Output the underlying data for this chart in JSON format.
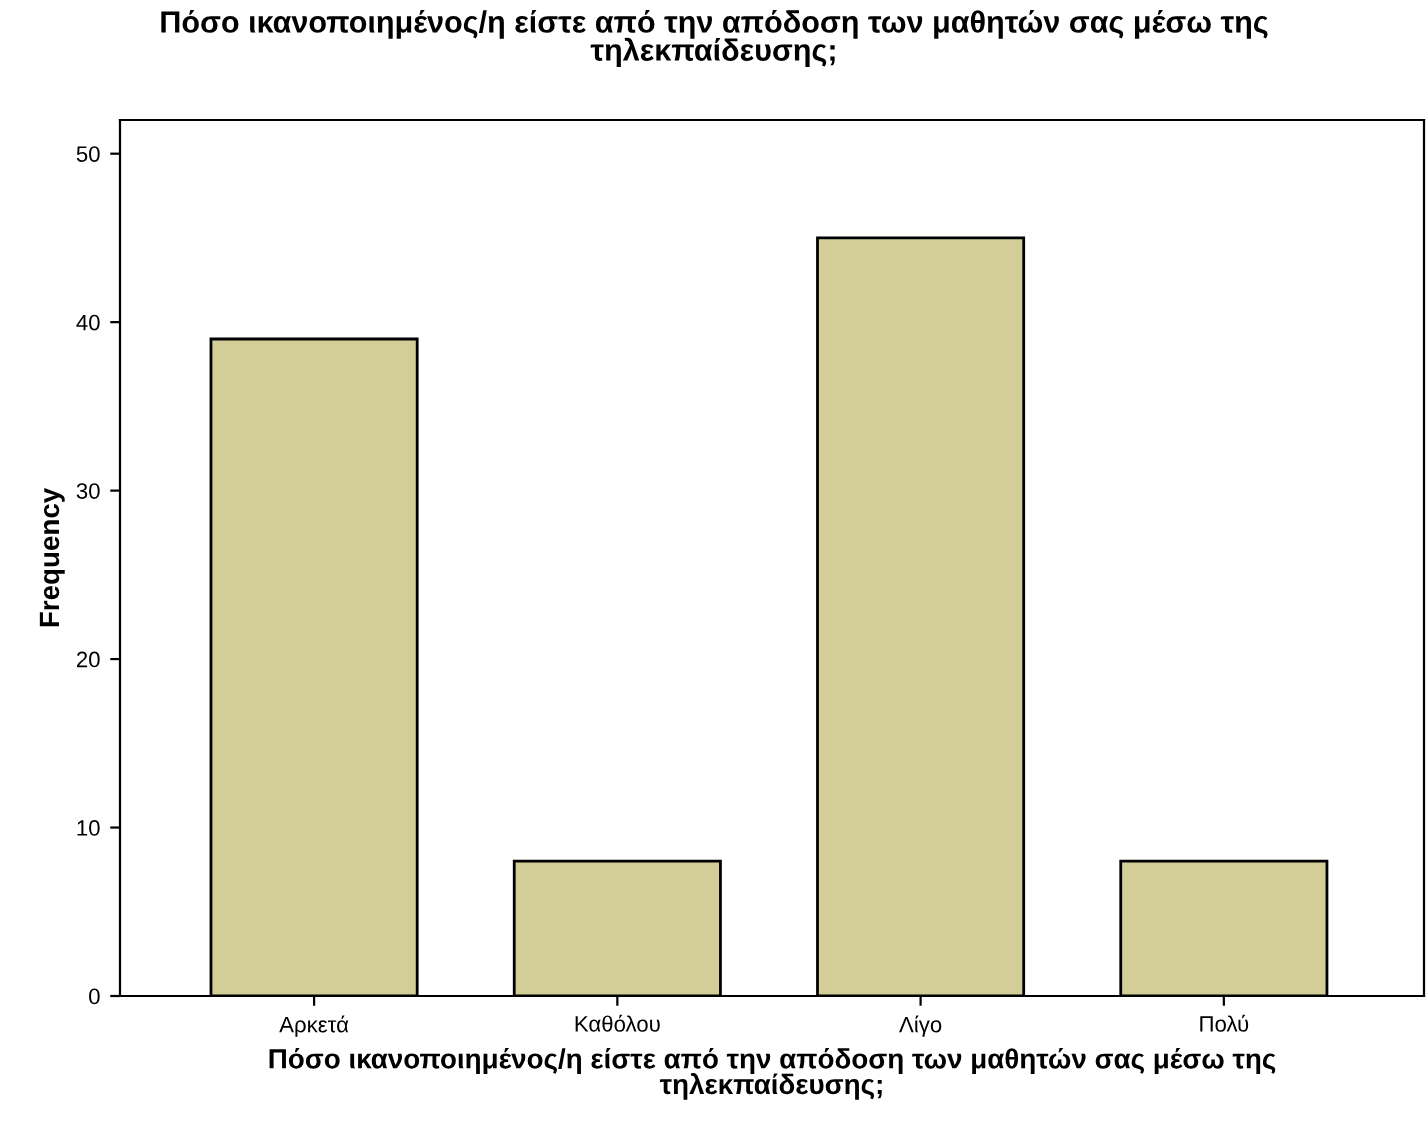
{
  "chart_data": {
    "type": "bar",
    "title": "Πόσο ικανοποιημένος/η είστε από την απόδοση των μαθητών σας μέσω της\nτηλεκπαίδευσης;",
    "xlabel": "Πόσο ικανοποιημένος/η είστε από την απόδοση των μαθητών σας μέσω της\nτηλεκπαίδευσης;",
    "ylabel": "Frequency",
    "categories": [
      "Αρκετά",
      "Καθόλου",
      "Λίγο",
      "Πολύ"
    ],
    "values": [
      39,
      8,
      45,
      8
    ],
    "color": "#d3ce97",
    "ylim": [
      0,
      52
    ],
    "yticks": [
      0,
      10,
      20,
      30,
      40,
      50
    ],
    "grid": false
  }
}
